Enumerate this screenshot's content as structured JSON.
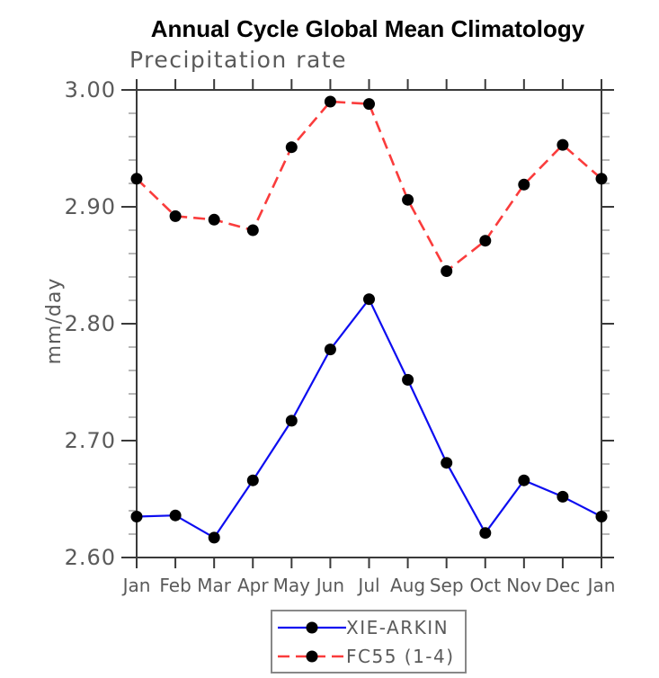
{
  "title": "Annual Cycle Global Mean Climatology",
  "subtitle": "Precipitation rate",
  "chart_data": {
    "type": "line",
    "categories": [
      "Jan",
      "Feb",
      "Mar",
      "Apr",
      "May",
      "Jun",
      "Jul",
      "Aug",
      "Sep",
      "Oct",
      "Nov",
      "Dec",
      "Jan"
    ],
    "ylabel": "mm/day",
    "ylim": [
      2.6,
      3.0
    ],
    "ytick_labels": [
      "3.00",
      "2.90",
      "2.80",
      "2.70",
      "2.60"
    ],
    "ytick_step": 0.1,
    "minor_tick_step": 0.02,
    "grid": false,
    "legend_position": "bottom-center",
    "series": [
      {
        "name": "XIE-ARKIN",
        "color": "#0d0df0",
        "line_style": "solid",
        "marker": "filled-circle",
        "marker_color": "#000000",
        "values": [
          2.635,
          2.636,
          2.617,
          2.666,
          2.717,
          2.778,
          2.821,
          2.752,
          2.681,
          2.621,
          2.666,
          2.652,
          2.635
        ]
      },
      {
        "name": "FC55 (1-4)",
        "color": "#fa3c3c",
        "line_style": "dashed",
        "marker": "filled-circle",
        "marker_color": "#000000",
        "values": [
          2.924,
          2.892,
          2.889,
          2.88,
          2.951,
          2.99,
          2.988,
          2.906,
          2.845,
          2.871,
          2.919,
          2.953,
          2.924
        ]
      }
    ]
  },
  "colors": {
    "background": "#ffffff",
    "title_text": "#000000",
    "label_text": "#5a5a5a",
    "axis": "#3a3a3a",
    "minor_tick": "#b8b8b8",
    "legend_border": "#888888"
  }
}
